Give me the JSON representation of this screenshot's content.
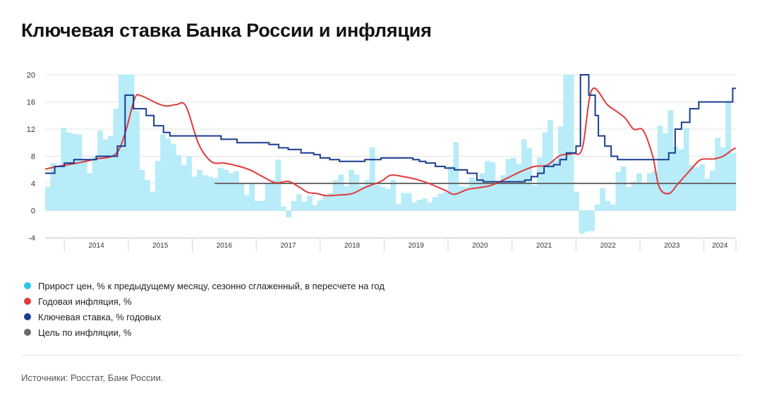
{
  "title": "Ключевая ставка Банка России и инфляция",
  "source": "Источники: Росстат, Банк России.",
  "legend": [
    {
      "label": "Прирост цен, % к предыдущему месяцу, сезонно сглаженный, в пересчете на год",
      "color": "#29c6ea"
    },
    {
      "label": "Годовая инфляция, %",
      "color": "#e3393a"
    },
    {
      "label": "Ключевая ставка, % годовых",
      "color": "#1a3d8f"
    },
    {
      "label": "Цель по инфляции, %",
      "color": "#6b6b6b"
    }
  ],
  "chart_data": {
    "type": "bar",
    "x_start": 2013.7,
    "x_end": 2024.5,
    "ylim": [
      -4,
      20
    ],
    "yticks": [
      -4,
      0,
      4,
      8,
      12,
      16,
      20
    ],
    "years": [
      "2014",
      "2015",
      "2016",
      "2017",
      "2018",
      "2019",
      "2020",
      "2021",
      "2022",
      "2023",
      "2024"
    ],
    "monthly_growth_saar": [
      3.5,
      7,
      6.5,
      12.2,
      11.5,
      11.3,
      11.2,
      7.5,
      5.5,
      8,
      11.8,
      10.5,
      11,
      15,
      20,
      20,
      20,
      14.7,
      6,
      4.5,
      2.8,
      7.3,
      11.2,
      10.6,
      9.8,
      8.2,
      6.7,
      8,
      5,
      6,
      5.2,
      5,
      4.8,
      6.3,
      6,
      5.5,
      5.8,
      4,
      2.3,
      4,
      1.4,
      1.4,
      4,
      4.5,
      7.5,
      0.6,
      -1,
      1.4,
      2.4,
      1.3,
      2.2,
      0.8,
      1.5,
      2.3,
      2.6,
      4.5,
      5.3,
      3.6,
      6,
      5.3,
      3.6,
      4.5,
      9.3,
      3.8,
      3.5,
      3.2,
      4.5,
      1,
      2.6,
      2.6,
      1.2,
      1.6,
      1.8,
      1.2,
      2,
      2.5,
      2.7,
      6.5,
      10.1,
      3.6,
      3.5,
      4.9,
      4.5,
      5.5,
      7.3,
      7.1,
      4,
      5.2,
      7.6,
      7.8,
      6.9,
      10.5,
      9.2,
      3.7,
      7.8,
      11.5,
      13.3,
      7.4,
      12.4,
      20,
      20,
      2.8,
      -3.4,
      -3.1,
      -3,
      0.9,
      3.3,
      1.4,
      0.9,
      5.7,
      6.5,
      3.5,
      4.3,
      5.5,
      4,
      5.5,
      5.8,
      12.5,
      11.4,
      14.8,
      9.4,
      9,
      12.2,
      6.7,
      6.4,
      6.8,
      4.7,
      5.9,
      10.7,
      9.3,
      16,
      8.5
    ],
    "series": [
      {
        "name": "Годовая инфляция, %",
        "points": [
          [
            2013.7,
            6.1
          ],
          [
            2013.9,
            6.5
          ],
          [
            2014.2,
            7.0
          ],
          [
            2014.5,
            7.6
          ],
          [
            2014.8,
            8.3
          ],
          [
            2014.95,
            11.4
          ],
          [
            2015.1,
            16.5
          ],
          [
            2015.2,
            16.9
          ],
          [
            2015.45,
            15.8
          ],
          [
            2015.6,
            15.4
          ],
          [
            2015.75,
            15.6
          ],
          [
            2015.9,
            15.4
          ],
          [
            2016.1,
            9.8
          ],
          [
            2016.3,
            7.2
          ],
          [
            2016.5,
            7.0
          ],
          [
            2016.7,
            6.6
          ],
          [
            2016.9,
            6.0
          ],
          [
            2017.1,
            5.0
          ],
          [
            2017.3,
            4.1
          ],
          [
            2017.5,
            4.3
          ],
          [
            2017.65,
            3.6
          ],
          [
            2017.8,
            2.7
          ],
          [
            2017.95,
            2.5
          ],
          [
            2018.1,
            2.2
          ],
          [
            2018.3,
            2.3
          ],
          [
            2018.5,
            2.5
          ],
          [
            2018.7,
            3.4
          ],
          [
            2018.95,
            4.3
          ],
          [
            2019.1,
            5.2
          ],
          [
            2019.3,
            5.0
          ],
          [
            2019.5,
            4.6
          ],
          [
            2019.7,
            4.0
          ],
          [
            2019.95,
            3.0
          ],
          [
            2020.1,
            2.4
          ],
          [
            2020.3,
            3.1
          ],
          [
            2020.5,
            3.4
          ],
          [
            2020.7,
            3.8
          ],
          [
            2020.95,
            4.9
          ],
          [
            2021.15,
            5.8
          ],
          [
            2021.35,
            6.5
          ],
          [
            2021.55,
            6.7
          ],
          [
            2021.75,
            8.1
          ],
          [
            2021.95,
            8.4
          ],
          [
            2022.1,
            9.2
          ],
          [
            2022.25,
            17.8
          ],
          [
            2022.5,
            15.5
          ],
          [
            2022.75,
            13.8
          ],
          [
            2022.9,
            12.0
          ],
          [
            2023.05,
            11.8
          ],
          [
            2023.2,
            8.0
          ],
          [
            2023.3,
            3.5
          ],
          [
            2023.45,
            2.5
          ],
          [
            2023.6,
            4.0
          ],
          [
            2023.8,
            6.1
          ],
          [
            2023.95,
            7.5
          ],
          [
            2024.15,
            7.6
          ],
          [
            2024.3,
            8.0
          ],
          [
            2024.45,
            9.0
          ],
          [
            2024.5,
            9.2
          ]
        ]
      },
      {
        "name": "Ключевая ставка, % годовых",
        "steps": [
          [
            2013.7,
            5.5
          ],
          [
            2013.85,
            6.5
          ],
          [
            2014.0,
            7.0
          ],
          [
            2014.15,
            7.5
          ],
          [
            2014.5,
            8.0
          ],
          [
            2014.83,
            9.5
          ],
          [
            2014.95,
            17.0
          ],
          [
            2015.08,
            15.0
          ],
          [
            2015.28,
            14.0
          ],
          [
            2015.4,
            12.5
          ],
          [
            2015.55,
            11.5
          ],
          [
            2015.65,
            11.0
          ],
          [
            2016.45,
            10.5
          ],
          [
            2016.7,
            10.0
          ],
          [
            2017.2,
            9.75
          ],
          [
            2017.35,
            9.25
          ],
          [
            2017.5,
            9.0
          ],
          [
            2017.7,
            8.5
          ],
          [
            2017.9,
            8.25
          ],
          [
            2018.0,
            7.75
          ],
          [
            2018.15,
            7.5
          ],
          [
            2018.3,
            7.25
          ],
          [
            2018.7,
            7.5
          ],
          [
            2018.95,
            7.75
          ],
          [
            2019.45,
            7.5
          ],
          [
            2019.55,
            7.25
          ],
          [
            2019.65,
            7.0
          ],
          [
            2019.8,
            6.5
          ],
          [
            2019.95,
            6.25
          ],
          [
            2020.1,
            6.0
          ],
          [
            2020.3,
            5.5
          ],
          [
            2020.45,
            4.5
          ],
          [
            2020.55,
            4.25
          ],
          [
            2021.2,
            4.5
          ],
          [
            2021.3,
            5.0
          ],
          [
            2021.4,
            5.5
          ],
          [
            2021.5,
            6.5
          ],
          [
            2021.65,
            6.75
          ],
          [
            2021.75,
            7.5
          ],
          [
            2021.85,
            8.5
          ],
          [
            2022.0,
            9.5
          ],
          [
            2022.07,
            20.0
          ],
          [
            2022.2,
            17.0
          ],
          [
            2022.3,
            14.0
          ],
          [
            2022.35,
            11.0
          ],
          [
            2022.45,
            9.5
          ],
          [
            2022.55,
            8.0
          ],
          [
            2022.65,
            7.5
          ],
          [
            2023.45,
            8.5
          ],
          [
            2023.55,
            12.0
          ],
          [
            2023.65,
            13.0
          ],
          [
            2023.78,
            15.0
          ],
          [
            2023.92,
            16.0
          ],
          [
            2024.45,
            18.0
          ],
          [
            2024.5,
            18.0
          ]
        ]
      },
      {
        "name": "Цель по инфляции, %",
        "from": 2016.35,
        "to": 2024.5,
        "value": 4
      }
    ]
  }
}
